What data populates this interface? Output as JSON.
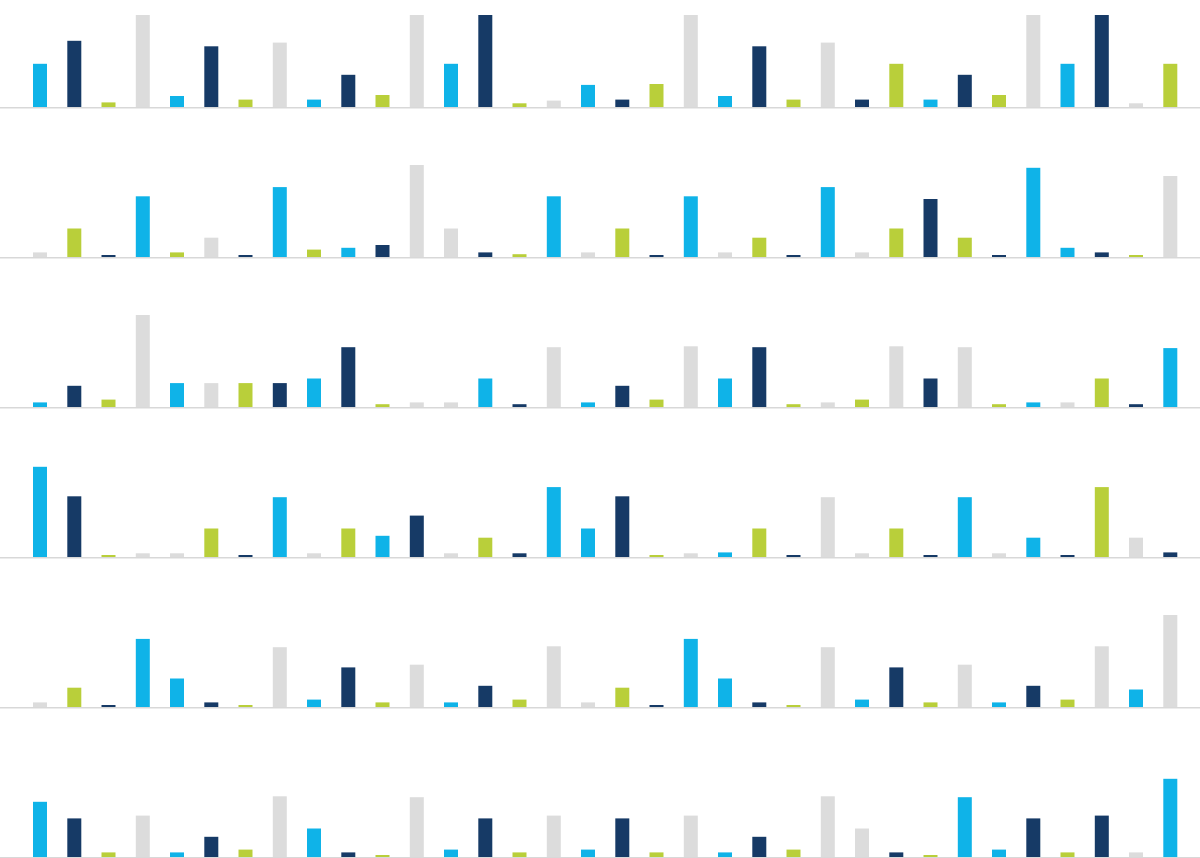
{
  "chart_data": {
    "type": "bar",
    "title": "",
    "xlabel": "",
    "ylabel": "",
    "grid": false,
    "legend": "none",
    "ylim": [
      0,
      1
    ],
    "colors": {
      "cyan": "#0fb3e8",
      "navy": "#163a66",
      "lime": "#b9cf3a",
      "gray": "#dcdcdc",
      "baseline": "#d8d8d8"
    },
    "panels": [
      {
        "bars": [
          {
            "c": "cyan",
            "v": 0.47
          },
          {
            "c": "navy",
            "v": 0.72
          },
          {
            "c": "lime",
            "v": 0.05
          },
          {
            "c": "gray",
            "v": 1.0
          },
          {
            "c": "cyan",
            "v": 0.12
          },
          {
            "c": "navy",
            "v": 0.66
          },
          {
            "c": "lime",
            "v": 0.08
          },
          {
            "c": "gray",
            "v": 0.7
          },
          {
            "c": "cyan",
            "v": 0.08
          },
          {
            "c": "navy",
            "v": 0.35
          },
          {
            "c": "lime",
            "v": 0.13
          },
          {
            "c": "gray",
            "v": 1.0
          },
          {
            "c": "cyan",
            "v": 0.47
          },
          {
            "c": "navy",
            "v": 1.0
          },
          {
            "c": "lime",
            "v": 0.04
          },
          {
            "c": "gray",
            "v": 0.07
          },
          {
            "c": "cyan",
            "v": 0.24
          },
          {
            "c": "navy",
            "v": 0.08
          },
          {
            "c": "lime",
            "v": 0.25
          },
          {
            "c": "gray",
            "v": 1.0
          },
          {
            "c": "cyan",
            "v": 0.12
          },
          {
            "c": "navy",
            "v": 0.66
          },
          {
            "c": "lime",
            "v": 0.08
          },
          {
            "c": "gray",
            "v": 0.7
          },
          {
            "c": "navy",
            "v": 0.08
          },
          {
            "c": "lime",
            "v": 0.47
          },
          {
            "c": "cyan",
            "v": 0.08
          },
          {
            "c": "navy",
            "v": 0.35
          },
          {
            "c": "lime",
            "v": 0.13
          },
          {
            "c": "gray",
            "v": 1.0
          },
          {
            "c": "cyan",
            "v": 0.47
          },
          {
            "c": "navy",
            "v": 1.0
          },
          {
            "c": "gray",
            "v": 0.04
          },
          {
            "c": "lime",
            "v": 0.47
          }
        ]
      },
      {
        "bars": [
          {
            "c": "gray",
            "v": 0.05
          },
          {
            "c": "lime",
            "v": 0.31
          },
          {
            "c": "navy",
            "v": 0.02
          },
          {
            "c": "cyan",
            "v": 0.66
          },
          {
            "c": "lime",
            "v": 0.05
          },
          {
            "c": "gray",
            "v": 0.21
          },
          {
            "c": "navy",
            "v": 0.02
          },
          {
            "c": "cyan",
            "v": 0.76
          },
          {
            "c": "lime",
            "v": 0.08
          },
          {
            "c": "cyan",
            "v": 0.1
          },
          {
            "c": "navy",
            "v": 0.13
          },
          {
            "c": "gray",
            "v": 1.0
          },
          {
            "c": "gray",
            "v": 0.31
          },
          {
            "c": "navy",
            "v": 0.05
          },
          {
            "c": "lime",
            "v": 0.03
          },
          {
            "c": "cyan",
            "v": 0.66
          },
          {
            "c": "gray",
            "v": 0.05
          },
          {
            "c": "lime",
            "v": 0.31
          },
          {
            "c": "navy",
            "v": 0.02
          },
          {
            "c": "cyan",
            "v": 0.66
          },
          {
            "c": "gray",
            "v": 0.05
          },
          {
            "c": "lime",
            "v": 0.21
          },
          {
            "c": "navy",
            "v": 0.02
          },
          {
            "c": "cyan",
            "v": 0.76
          },
          {
            "c": "gray",
            "v": 0.05
          },
          {
            "c": "lime",
            "v": 0.31
          },
          {
            "c": "navy",
            "v": 0.63
          },
          {
            "c": "lime",
            "v": 0.21
          },
          {
            "c": "navy",
            "v": 0.02
          },
          {
            "c": "cyan",
            "v": 0.97
          },
          {
            "c": "cyan",
            "v": 0.1
          },
          {
            "c": "navy",
            "v": 0.05
          },
          {
            "c": "lime",
            "v": 0.02
          },
          {
            "c": "gray",
            "v": 0.88
          }
        ]
      },
      {
        "bars": [
          {
            "c": "cyan",
            "v": 0.05
          },
          {
            "c": "navy",
            "v": 0.23
          },
          {
            "c": "lime",
            "v": 0.08
          },
          {
            "c": "gray",
            "v": 1.0
          },
          {
            "c": "cyan",
            "v": 0.26
          },
          {
            "c": "gray",
            "v": 0.26
          },
          {
            "c": "lime",
            "v": 0.26
          },
          {
            "c": "navy",
            "v": 0.26
          },
          {
            "c": "cyan",
            "v": 0.31
          },
          {
            "c": "navy",
            "v": 0.65
          },
          {
            "c": "lime",
            "v": 0.03
          },
          {
            "c": "gray",
            "v": 0.05
          },
          {
            "c": "gray",
            "v": 0.05
          },
          {
            "c": "cyan",
            "v": 0.31
          },
          {
            "c": "navy",
            "v": 0.03
          },
          {
            "c": "gray",
            "v": 0.65
          },
          {
            "c": "cyan",
            "v": 0.05
          },
          {
            "c": "navy",
            "v": 0.23
          },
          {
            "c": "lime",
            "v": 0.08
          },
          {
            "c": "gray",
            "v": 0.66
          },
          {
            "c": "cyan",
            "v": 0.31
          },
          {
            "c": "navy",
            "v": 0.65
          },
          {
            "c": "lime",
            "v": 0.03
          },
          {
            "c": "gray",
            "v": 0.05
          },
          {
            "c": "lime",
            "v": 0.08
          },
          {
            "c": "gray",
            "v": 0.66
          },
          {
            "c": "navy",
            "v": 0.31
          },
          {
            "c": "gray",
            "v": 0.65
          },
          {
            "c": "lime",
            "v": 0.03
          },
          {
            "c": "cyan",
            "v": 0.05
          },
          {
            "c": "gray",
            "v": 0.05
          },
          {
            "c": "lime",
            "v": 0.31
          },
          {
            "c": "navy",
            "v": 0.03
          },
          {
            "c": "cyan",
            "v": 0.64
          }
        ]
      },
      {
        "bars": [
          {
            "c": "cyan",
            "v": 0.98
          },
          {
            "c": "navy",
            "v": 0.66
          },
          {
            "c": "lime",
            "v": 0.02
          },
          {
            "c": "gray",
            "v": 0.04
          },
          {
            "c": "gray",
            "v": 0.04
          },
          {
            "c": "lime",
            "v": 0.31
          },
          {
            "c": "navy",
            "v": 0.02
          },
          {
            "c": "cyan",
            "v": 0.65
          },
          {
            "c": "gray",
            "v": 0.04
          },
          {
            "c": "lime",
            "v": 0.31
          },
          {
            "c": "cyan",
            "v": 0.23
          },
          {
            "c": "navy",
            "v": 0.45
          },
          {
            "c": "gray",
            "v": 0.04
          },
          {
            "c": "lime",
            "v": 0.21
          },
          {
            "c": "navy",
            "v": 0.04
          },
          {
            "c": "cyan",
            "v": 0.76
          },
          {
            "c": "cyan",
            "v": 0.31
          },
          {
            "c": "navy",
            "v": 0.66
          },
          {
            "c": "lime",
            "v": 0.02
          },
          {
            "c": "gray",
            "v": 0.04
          },
          {
            "c": "cyan",
            "v": 0.05
          },
          {
            "c": "lime",
            "v": 0.31
          },
          {
            "c": "navy",
            "v": 0.02
          },
          {
            "c": "gray",
            "v": 0.65
          },
          {
            "c": "gray",
            "v": 0.04
          },
          {
            "c": "lime",
            "v": 0.31
          },
          {
            "c": "navy",
            "v": 0.02
          },
          {
            "c": "cyan",
            "v": 0.65
          },
          {
            "c": "gray",
            "v": 0.04
          },
          {
            "c": "cyan",
            "v": 0.21
          },
          {
            "c": "navy",
            "v": 0.02
          },
          {
            "c": "lime",
            "v": 0.76
          },
          {
            "c": "gray",
            "v": 0.21
          },
          {
            "c": "navy",
            "v": 0.05
          }
        ]
      },
      {
        "bars": [
          {
            "c": "gray",
            "v": 0.05
          },
          {
            "c": "lime",
            "v": 0.21
          },
          {
            "c": "navy",
            "v": 0.02
          },
          {
            "c": "cyan",
            "v": 0.74
          },
          {
            "c": "cyan",
            "v": 0.31
          },
          {
            "c": "navy",
            "v": 0.05
          },
          {
            "c": "lime",
            "v": 0.02
          },
          {
            "c": "gray",
            "v": 0.65
          },
          {
            "c": "cyan",
            "v": 0.08
          },
          {
            "c": "navy",
            "v": 0.43
          },
          {
            "c": "lime",
            "v": 0.05
          },
          {
            "c": "gray",
            "v": 0.46
          },
          {
            "c": "cyan",
            "v": 0.05
          },
          {
            "c": "navy",
            "v": 0.23
          },
          {
            "c": "lime",
            "v": 0.08
          },
          {
            "c": "gray",
            "v": 0.66
          },
          {
            "c": "gray",
            "v": 0.05
          },
          {
            "c": "lime",
            "v": 0.21
          },
          {
            "c": "navy",
            "v": 0.02
          },
          {
            "c": "cyan",
            "v": 0.74
          },
          {
            "c": "cyan",
            "v": 0.31
          },
          {
            "c": "navy",
            "v": 0.05
          },
          {
            "c": "lime",
            "v": 0.02
          },
          {
            "c": "gray",
            "v": 0.65
          },
          {
            "c": "cyan",
            "v": 0.08
          },
          {
            "c": "navy",
            "v": 0.43
          },
          {
            "c": "lime",
            "v": 0.05
          },
          {
            "c": "gray",
            "v": 0.46
          },
          {
            "c": "cyan",
            "v": 0.05
          },
          {
            "c": "navy",
            "v": 0.23
          },
          {
            "c": "lime",
            "v": 0.08
          },
          {
            "c": "gray",
            "v": 0.66
          },
          {
            "c": "cyan",
            "v": 0.19
          },
          {
            "c": "gray",
            "v": 1.0
          }
        ]
      },
      {
        "bars": [
          {
            "c": "cyan",
            "v": 0.6
          },
          {
            "c": "navy",
            "v": 0.42
          },
          {
            "c": "lime",
            "v": 0.05
          },
          {
            "c": "gray",
            "v": 0.45
          },
          {
            "c": "cyan",
            "v": 0.05
          },
          {
            "c": "navy",
            "v": 0.22
          },
          {
            "c": "lime",
            "v": 0.08
          },
          {
            "c": "gray",
            "v": 0.66
          },
          {
            "c": "cyan",
            "v": 0.31
          },
          {
            "c": "navy",
            "v": 0.05
          },
          {
            "c": "lime",
            "v": 0.02
          },
          {
            "c": "gray",
            "v": 0.65
          },
          {
            "c": "cyan",
            "v": 0.08
          },
          {
            "c": "navy",
            "v": 0.42
          },
          {
            "c": "lime",
            "v": 0.05
          },
          {
            "c": "gray",
            "v": 0.45
          },
          {
            "c": "cyan",
            "v": 0.08
          },
          {
            "c": "navy",
            "v": 0.42
          },
          {
            "c": "lime",
            "v": 0.05
          },
          {
            "c": "gray",
            "v": 0.45
          },
          {
            "c": "cyan",
            "v": 0.05
          },
          {
            "c": "navy",
            "v": 0.22
          },
          {
            "c": "lime",
            "v": 0.08
          },
          {
            "c": "gray",
            "v": 0.66
          },
          {
            "c": "gray",
            "v": 0.31
          },
          {
            "c": "navy",
            "v": 0.05
          },
          {
            "c": "lime",
            "v": 0.02
          },
          {
            "c": "cyan",
            "v": 0.65
          },
          {
            "c": "cyan",
            "v": 0.08
          },
          {
            "c": "navy",
            "v": 0.42
          },
          {
            "c": "lime",
            "v": 0.05
          },
          {
            "c": "navy",
            "v": 0.45
          },
          {
            "c": "gray",
            "v": 0.05
          },
          {
            "c": "cyan",
            "v": 0.85
          }
        ]
      }
    ]
  }
}
